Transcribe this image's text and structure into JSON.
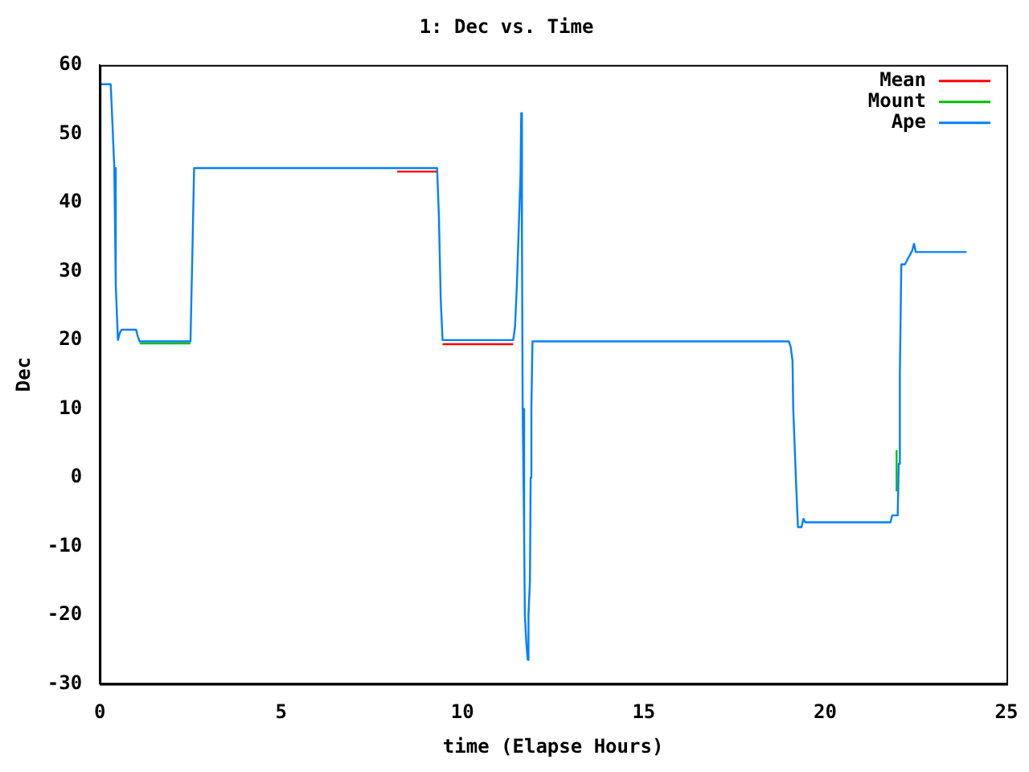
{
  "chart_data": {
    "type": "line",
    "title": "1: Dec vs. Time",
    "xlabel": "time (Elapse Hours)",
    "ylabel": "Dec",
    "xlim": [
      0,
      25
    ],
    "xticks": [
      0,
      5,
      10,
      15,
      20,
      25
    ],
    "ylim": [
      -30,
      60
    ],
    "yticks": [
      -30,
      -20,
      -10,
      0,
      10,
      20,
      30,
      40,
      50,
      60
    ],
    "grid": false,
    "legend": "top right",
    "marker": "none",
    "line_style": "solid",
    "series": [
      {
        "name": "Mean",
        "color": "#ff0000",
        "x": [
          8.2,
          9.3,
          9.35,
          9.4,
          9.45,
          11.4
        ],
        "values": [
          44.5,
          44.5,
          null,
          null,
          19.4,
          19.4
        ]
      },
      {
        "name": "Mount",
        "color": "#00c000",
        "x": [
          1.1,
          2.5,
          2.52,
          21.97,
          21.97
        ],
        "values": [
          19.5,
          19.5,
          null,
          -2,
          4
        ]
      },
      {
        "name": "Ape",
        "color": "#0080ff",
        "x": [
          0,
          0.3,
          0.32,
          0.4,
          0.44,
          0.5,
          0.55,
          0.6,
          1.0,
          1.05,
          1.1,
          2.5,
          2.55,
          2.6,
          9.3,
          9.35,
          9.4,
          9.45,
          11.4,
          11.45,
          11.5,
          11.55,
          11.6,
          11.62,
          11.64,
          11.66,
          11.7,
          11.72,
          11.76,
          11.8,
          11.82,
          11.86,
          11.88,
          11.9,
          11.93,
          19.0,
          19.05,
          19.1,
          19.12,
          19.2,
          19.25,
          19.35,
          19.4,
          19.45,
          21.8,
          21.85,
          22.0,
          22.03,
          22.06,
          22.1,
          22.2,
          22.3,
          22.4,
          22.45,
          22.5,
          23.9
        ],
        "values": [
          57.2,
          57.2,
          55,
          45,
          28,
          20,
          21,
          21.5,
          21.5,
          20.5,
          19.8,
          19.8,
          32,
          45,
          45,
          38,
          26,
          20,
          20,
          22,
          28,
          36,
          44,
          53,
          35,
          10,
          -8,
          -20,
          -24,
          -26.5,
          -20,
          -15,
          0,
          10,
          19.8,
          19.8,
          19,
          17,
          10,
          -1,
          -7.2,
          -7.2,
          -6,
          -6.5,
          -6.5,
          -5.5,
          -5.5,
          2,
          15,
          31,
          31,
          32,
          33,
          34,
          32.8,
          32.8
        ]
      }
    ]
  }
}
